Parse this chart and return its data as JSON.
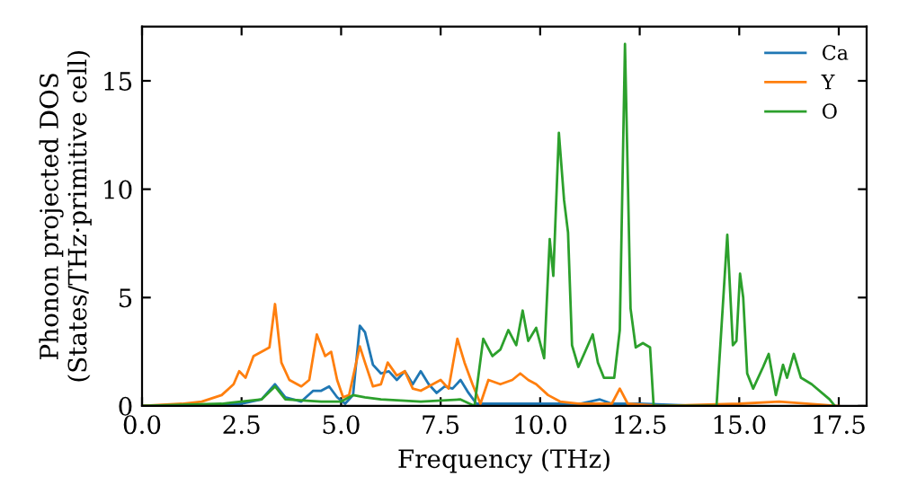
{
  "chart_data": {
    "type": "line",
    "xlabel": "Frequency (THz)",
    "ylabel": "Phonon projected DOS\n(States/THz·primitive cell)",
    "xlim": [
      0,
      18.2
    ],
    "ylim": [
      0,
      17.5
    ],
    "xticks": [
      {
        "value": 0,
        "label": "0.0"
      },
      {
        "value": 2.5,
        "label": "2.5"
      },
      {
        "value": 5,
        "label": "5.0"
      },
      {
        "value": 7.5,
        "label": "7.5"
      },
      {
        "value": 10,
        "label": "10.0"
      },
      {
        "value": 12.5,
        "label": "12.5"
      },
      {
        "value": 15,
        "label": "15.0"
      },
      {
        "value": 17.5,
        "label": "17.5"
      }
    ],
    "yticks": [
      0,
      5,
      10,
      15
    ],
    "grid": false,
    "legend": "top right",
    "series": [
      {
        "name": "Ca",
        "color": "#1f77b4",
        "x": [
          0,
          1.5,
          2.5,
          3.0,
          3.34,
          3.6,
          4.0,
          4.3,
          4.5,
          4.7,
          4.9,
          5.1,
          5.3,
          5.47,
          5.6,
          5.8,
          6.0,
          6.2,
          6.4,
          6.6,
          6.8,
          7.0,
          7.2,
          7.4,
          7.6,
          7.8,
          8.0,
          8.2,
          8.4,
          9.0,
          10.0,
          11.0,
          11.5,
          11.8,
          12.5,
          14.0
        ],
        "values": [
          0,
          0,
          0.1,
          0.3,
          1.0,
          0.4,
          0.2,
          0.7,
          0.7,
          0.9,
          0.4,
          0.1,
          0.5,
          3.7,
          3.4,
          1.9,
          1.5,
          1.6,
          1.2,
          1.6,
          1.0,
          1.6,
          1.0,
          0.6,
          0.9,
          0.8,
          1.2,
          0.6,
          0.1,
          0.1,
          0.1,
          0.1,
          0.3,
          0.1,
          0.1,
          0
        ]
      },
      {
        "name": "Y",
        "color": "#ff7f0e",
        "x": [
          0,
          1.0,
          1.5,
          2.0,
          2.3,
          2.44,
          2.6,
          2.8,
          3.1,
          3.2,
          3.34,
          3.5,
          3.7,
          4.0,
          4.2,
          4.39,
          4.6,
          4.75,
          4.9,
          5.05,
          5.2,
          5.47,
          5.6,
          5.8,
          6.0,
          6.17,
          6.4,
          6.6,
          6.8,
          7.0,
          7.2,
          7.5,
          7.7,
          7.92,
          8.1,
          8.3,
          8.5,
          8.7,
          9.0,
          9.3,
          9.5,
          9.7,
          9.9,
          10.2,
          10.5,
          11.0,
          11.8,
          12.0,
          12.2,
          13.0,
          15.0,
          16.0,
          17.5
        ],
        "values": [
          0,
          0.1,
          0.2,
          0.5,
          1.0,
          1.6,
          1.3,
          2.3,
          2.6,
          2.7,
          4.7,
          2.0,
          1.2,
          0.9,
          1.2,
          3.3,
          2.3,
          2.5,
          1.2,
          0.4,
          0.5,
          2.75,
          2.0,
          0.9,
          1.0,
          2.0,
          1.4,
          1.6,
          0.8,
          0.7,
          0.9,
          1.2,
          0.8,
          3.1,
          2.0,
          1.0,
          0.1,
          1.2,
          1.0,
          1.2,
          1.5,
          1.2,
          1.0,
          0.5,
          0.2,
          0.1,
          0.1,
          0.8,
          0.1,
          0,
          0.1,
          0.2,
          0
        ]
      },
      {
        "name": "O",
        "color": "#2ca02c",
        "x": [
          0,
          2.0,
          3.0,
          3.34,
          3.6,
          4.5,
          5.0,
          5.3,
          5.6,
          6.0,
          7.0,
          8.0,
          8.35,
          8.57,
          8.8,
          9.0,
          9.2,
          9.4,
          9.56,
          9.7,
          9.9,
          10.1,
          10.24,
          10.33,
          10.47,
          10.6,
          10.7,
          10.8,
          10.96,
          11.32,
          11.45,
          11.6,
          11.86,
          12.0,
          12.13,
          12.27,
          12.4,
          12.58,
          12.76,
          12.85,
          14.43,
          14.7,
          14.84,
          14.93,
          15.02,
          15.1,
          15.2,
          15.35,
          15.6,
          15.74,
          15.92,
          16.1,
          16.2,
          16.37,
          16.55,
          16.82,
          17.27,
          17.4
        ],
        "values": [
          0,
          0.1,
          0.3,
          0.9,
          0.3,
          0.2,
          0.2,
          0.5,
          0.4,
          0.3,
          0.2,
          0.3,
          0,
          3.1,
          2.3,
          2.6,
          3.5,
          2.8,
          4.4,
          3.0,
          3.6,
          2.2,
          7.7,
          6.0,
          12.6,
          9.5,
          8.0,
          2.8,
          1.8,
          3.3,
          2.0,
          1.3,
          1.3,
          3.5,
          16.7,
          4.5,
          2.7,
          2.9,
          2.7,
          0,
          0,
          7.9,
          2.8,
          3.0,
          6.1,
          5.0,
          1.5,
          0.8,
          1.8,
          2.4,
          0.5,
          1.9,
          1.3,
          2.4,
          1.3,
          1.0,
          0.3,
          0
        ]
      }
    ]
  }
}
